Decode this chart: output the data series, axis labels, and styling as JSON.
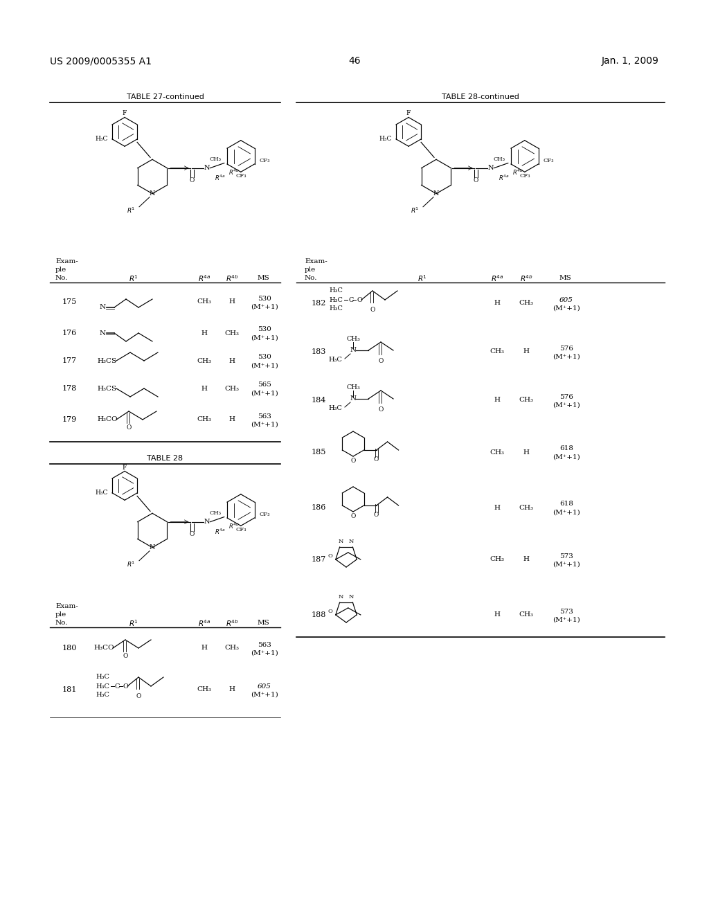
{
  "bg_color": "#ffffff",
  "header_left": "US 2009/0005355 A1",
  "header_right": "Jan. 1, 2009",
  "page_number": "46",
  "table27_title": "TABLE 27-continued",
  "table28_title": "TABLE 28-continued",
  "table28b_title": "TABLE 28"
}
